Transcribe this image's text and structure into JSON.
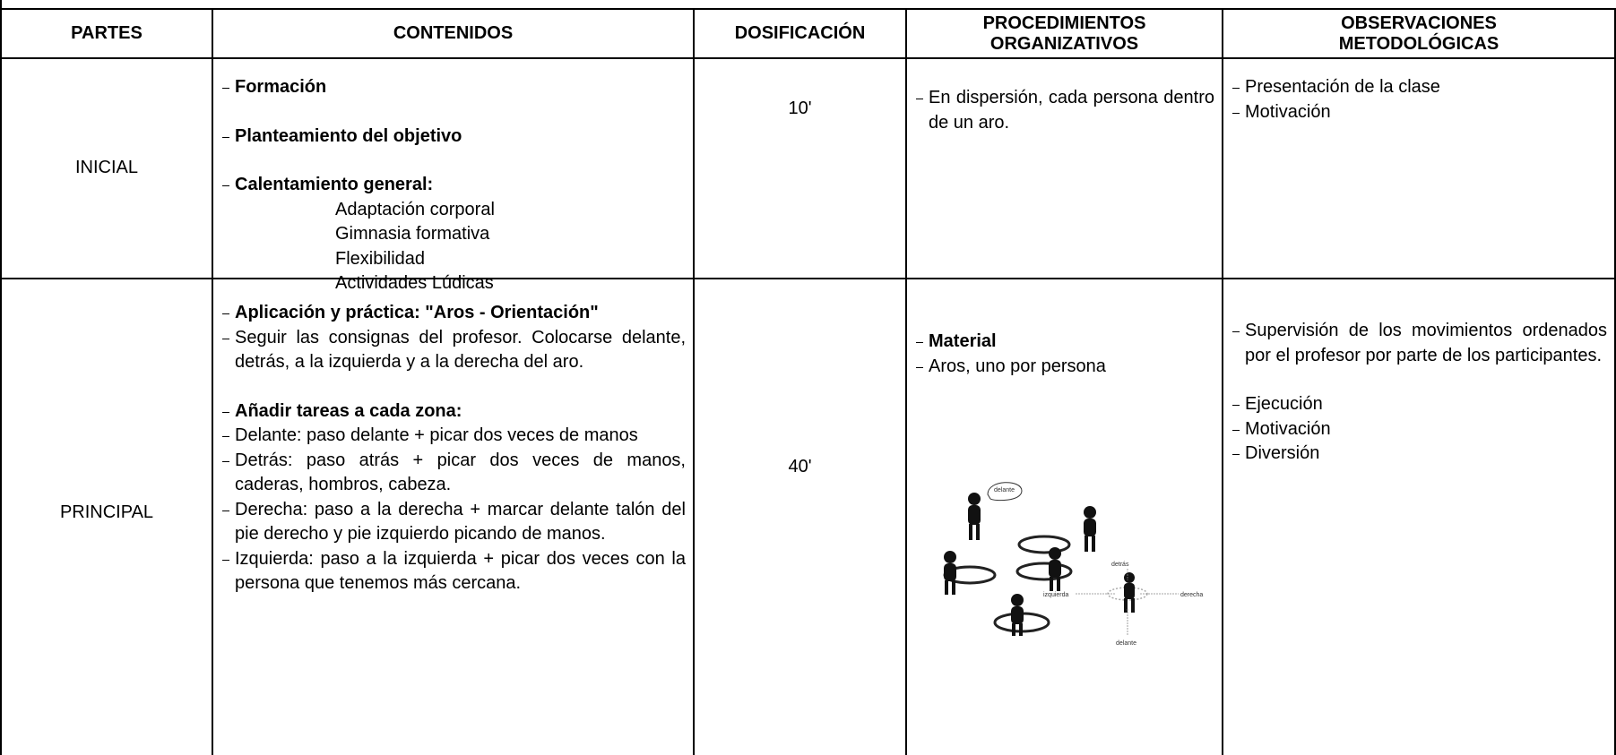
{
  "table": {
    "headers": [
      [
        "PARTES"
      ],
      [
        "CONTENIDOS"
      ],
      [
        "DOSIFICACIÓN"
      ],
      [
        "PROCEDIMIENTOS",
        "ORGANIZATIVOS"
      ],
      [
        "OBSERVACIONES",
        "METODOLÓGICAS"
      ]
    ],
    "rows": [
      {
        "parte": "INICIAL",
        "contenidos": [
          {
            "heading": "Formación"
          },
          {
            "heading": "Planteamiento del objetivo"
          },
          {
            "heading": "Calentamiento general:"
          }
        ],
        "subitems": [
          "Adaptación corporal",
          "Gimnasia formativa",
          "Flexibilidad",
          "Actividades Lúdicas"
        ],
        "dosificacion": "10'",
        "procedimientos": [
          {
            "text": "En dispersión, cada persona dentro de un aro."
          }
        ],
        "observaciones": [
          "Presentación de la clase",
          "Motivación"
        ]
      },
      {
        "parte": "PRINCIPAL",
        "contenidos": [
          {
            "heading": "Aplicación y práctica: \"Aros - Orientación\""
          },
          {
            "text": "Seguir las consignas del profesor. Colocarse delante, detrás, a la izquierda y a la derecha del aro."
          },
          {
            "heading": "Añadir tareas a cada zona:"
          },
          {
            "text": "Delante: paso delante + picar dos veces de manos"
          },
          {
            "text": "Detrás: paso atrás + picar dos veces de manos, caderas, hombros, cabeza."
          },
          {
            "text": "Derecha: paso a la derecha + marcar delante talón del pie derecho y pie izquierdo picando de manos."
          },
          {
            "text": "Izquierda: paso a la izquierda + picar dos veces con la persona que tenemos más cercana."
          }
        ],
        "subitems": [],
        "dosificacion": "40'",
        "procedimientos": [
          {
            "heading": "Material"
          },
          {
            "text": "Aros, uno por persona"
          }
        ],
        "observaciones": [
          "Supervisión de los movimientos ordenados por el profesor por parte de los participantes.",
          "Ejecución",
          "Motivación",
          "Diversión"
        ]
      }
    ]
  },
  "figure": {
    "labels": [
      "delante",
      "detrás",
      "izquierda",
      "derecha",
      "delante"
    ]
  }
}
